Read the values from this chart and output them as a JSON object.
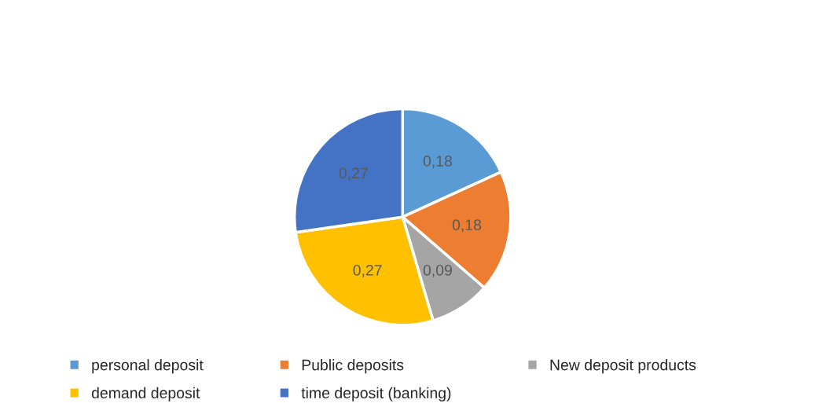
{
  "chart_data": {
    "type": "pie",
    "categories": [
      "personal deposit",
      "Public deposits",
      "New deposit products",
      "demand deposit",
      "time deposit (banking)"
    ],
    "values": [
      0.18,
      0.18,
      0.09,
      0.27,
      0.27
    ],
    "value_labels": [
      "0,18",
      "0,18",
      "0,09",
      "0,27",
      "0,27"
    ],
    "colors": [
      "#5b9bd5",
      "#ed7d31",
      "#a5a5a5",
      "#ffc000",
      "#4472c4"
    ],
    "legend": "bottom"
  }
}
